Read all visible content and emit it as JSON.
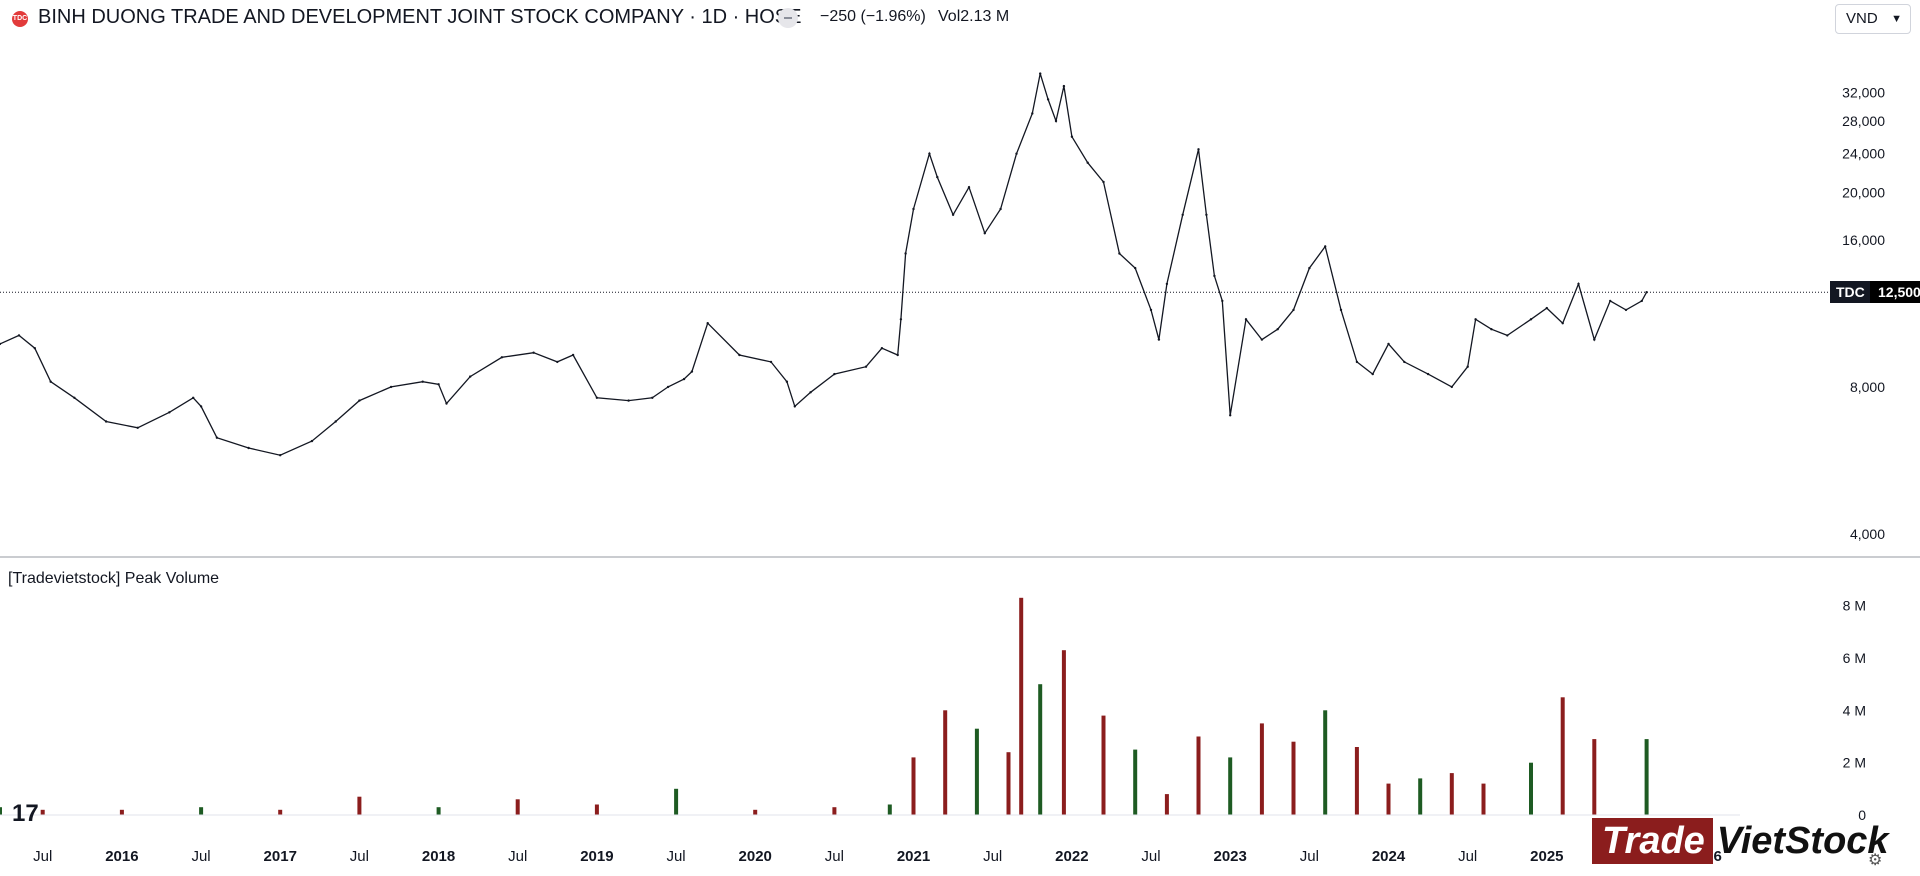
{
  "header": {
    "logo_text": "TDC",
    "title": "BINH DUONG TRADE AND DEVELOPMENT JOINT STOCK COMPANY · 1D · HOSE",
    "change": "−250 (−1.96%)",
    "volume": "Vol2.13 M",
    "currency": "VND"
  },
  "price_tag": {
    "symbol": "TDC",
    "value": "12,500"
  },
  "volume_pane": {
    "title": "[Tradevietstock] Peak Volume"
  },
  "watermark": {
    "part1": "Trade",
    "part2": "VietStock"
  },
  "tv_logo": "17",
  "chart_data": [
    {
      "type": "line",
      "y_scale": "log",
      "y_ticks": [
        "32,000",
        "28,000",
        "24,000",
        "20,000",
        "16,000",
        "8,000",
        "4,000"
      ],
      "y_tick_values": [
        32000,
        28000,
        24000,
        20000,
        16000,
        8000,
        4000
      ],
      "ylim": [
        3800,
        41000
      ],
      "x_ticks": [
        "Jul",
        "2016",
        "Jul",
        "2017",
        "Jul",
        "2018",
        "Jul",
        "2019",
        "Jul",
        "2020",
        "Jul",
        "2021",
        "Jul",
        "2022",
        "Jul",
        "2023",
        "Jul",
        "2024",
        "Jul",
        "2025",
        "Jul",
        "2026"
      ],
      "x_tick_dates": [
        2015.5,
        2016,
        2016.5,
        2017,
        2017.5,
        2018,
        2018.5,
        2019,
        2019.5,
        2020,
        2020.5,
        2021,
        2021.5,
        2022,
        2022.5,
        2023,
        2023.5,
        2024,
        2024.5,
        2025,
        2025.5,
        2026
      ],
      "xlim": [
        2015.23,
        2026.22
      ],
      "last_price": 12500,
      "series": [
        {
          "x": [
            2015.23,
            2015.35,
            2015.45,
            2015.55,
            2015.7,
            2015.9,
            2016.1,
            2016.3,
            2016.45,
            2016.5,
            2016.6,
            2016.8,
            2017.0,
            2017.2,
            2017.35,
            2017.5,
            2017.7,
            2017.9,
            2018.0,
            2018.05,
            2018.2,
            2018.4,
            2018.6,
            2018.75,
            2018.85,
            2019.0,
            2019.2,
            2019.35,
            2019.45,
            2019.55,
            2019.6,
            2019.7,
            2019.9,
            2020.1,
            2020.2,
            2020.25,
            2020.35,
            2020.5,
            2020.7,
            2020.8,
            2020.9,
            2020.92,
            2020.95,
            2021.0,
            2021.1,
            2021.15,
            2021.25,
            2021.35,
            2021.45,
            2021.55,
            2021.65,
            2021.75,
            2021.8,
            2021.85,
            2021.9,
            2021.95,
            2022.0,
            2022.1,
            2022.2,
            2022.3,
            2022.4,
            2022.5,
            2022.55,
            2022.6,
            2022.7,
            2022.8,
            2022.85,
            2022.9,
            2022.95,
            2023.0,
            2023.1,
            2023.2,
            2023.3,
            2023.4,
            2023.5,
            2023.6,
            2023.7,
            2023.8,
            2023.9,
            2024.0,
            2024.1,
            2024.25,
            2024.4,
            2024.5,
            2024.55,
            2024.65,
            2024.75,
            2024.9,
            2025.0,
            2025.1,
            2025.2,
            2025.3,
            2025.4,
            2025.5,
            2025.6,
            2025.63
          ],
          "values": [
            9800,
            10200,
            9600,
            8200,
            7600,
            6800,
            6600,
            7100,
            7600,
            7300,
            6300,
            6000,
            5800,
            6200,
            6800,
            7500,
            8000,
            8200,
            8100,
            7400,
            8400,
            9200,
            9400,
            9000,
            9300,
            7600,
            7500,
            7600,
            8000,
            8300,
            8600,
            10800,
            9300,
            9000,
            8200,
            7300,
            7800,
            8500,
            8800,
            9600,
            9300,
            11000,
            15000,
            18500,
            24000,
            21500,
            18000,
            20500,
            16500,
            18500,
            24000,
            29000,
            35000,
            31000,
            28000,
            33000,
            26000,
            23000,
            21000,
            15000,
            14000,
            11500,
            10000,
            13000,
            18000,
            24500,
            18000,
            13500,
            12000,
            7000,
            11000,
            10000,
            10500,
            11500,
            14000,
            15500,
            11500,
            9000,
            8500,
            9800,
            9000,
            8500,
            8000,
            8800,
            11000,
            10500,
            10200,
            11000,
            11600,
            10800,
            13000,
            10000,
            12000,
            11500,
            12000,
            12500
          ]
        }
      ]
    },
    {
      "type": "bar",
      "title": "[Tradevietstock] Peak Volume",
      "y_ticks": [
        "8 M",
        "6 M",
        "4 M",
        "2 M",
        "0"
      ],
      "y_tick_values": [
        8,
        6,
        4,
        2,
        0
      ],
      "ylim": [
        0,
        8.6
      ],
      "unit": "M",
      "series": [
        {
          "x": [
            2015.23,
            2015.5,
            2016,
            2016.5,
            2017,
            2017.5,
            2018,
            2018.5,
            2019,
            2019.5,
            2020,
            2020.5,
            2020.85,
            2021.0,
            2021.2,
            2021.4,
            2021.6,
            2021.68,
            2021.8,
            2021.95,
            2022.2,
            2022.4,
            2022.6,
            2022.8,
            2023.0,
            2023.2,
            2023.4,
            2023.6,
            2023.8,
            2024.0,
            2024.2,
            2024.4,
            2024.6,
            2024.9,
            2025.1,
            2025.3,
            2025.63
          ],
          "values": [
            0.3,
            0.2,
            0.2,
            0.3,
            0.2,
            0.7,
            0.3,
            0.6,
            0.4,
            1.0,
            0.2,
            0.3,
            0.4,
            2.2,
            4.0,
            3.3,
            2.4,
            8.3,
            5.0,
            6.3,
            3.8,
            2.5,
            0.8,
            3.0,
            2.2,
            3.5,
            2.8,
            4.0,
            2.6,
            1.2,
            1.4,
            1.6,
            1.2,
            2.0,
            4.5,
            2.9,
            2.9
          ]
        }
      ]
    }
  ]
}
